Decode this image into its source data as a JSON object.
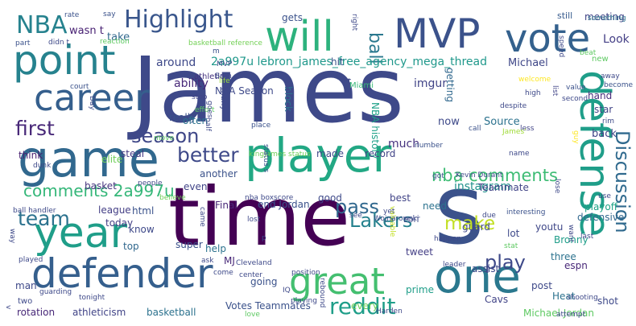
{
  "word_cloud": {
    "words": [
      {
        "text": "James",
        "color": "#3e4989"
      },
      {
        "text": "time",
        "color": "#440154"
      },
      {
        "text": "s",
        "color": "#3b528b"
      },
      {
        "text": "player",
        "color": "#22a884"
      },
      {
        "text": "defender",
        "color": "#355f8d"
      },
      {
        "text": "one",
        "color": "#2a788e"
      },
      {
        "text": "game",
        "color": "#31688e"
      },
      {
        "text": "point",
        "color": "#26828e"
      },
      {
        "text": "year",
        "color": "#1f9e89"
      },
      {
        "text": "career",
        "color": "#355f8d"
      },
      {
        "text": "vote",
        "color": "#34618d"
      },
      {
        "text": "MVP",
        "color": "#3b528b"
      },
      {
        "text": "will",
        "color": "#2db27d"
      },
      {
        "text": "defense",
        "color": "#1f9e89"
      },
      {
        "text": "great",
        "color": "#44bf70"
      },
      {
        "text": "Highlight",
        "color": "#39568c"
      },
      {
        "text": "NBA",
        "color": "#26828e"
      },
      {
        "text": "first",
        "color": "#482878"
      },
      {
        "text": "better",
        "color": "#3e4989"
      },
      {
        "text": "Discussion",
        "color": "#306a8e"
      },
      {
        "text": "reddit",
        "color": "#1f9e89"
      },
      {
        "text": "pass",
        "color": "#31688e"
      },
      {
        "text": "play",
        "color": "#3e4989"
      },
      {
        "text": "make",
        "color": "#c2df23"
      },
      {
        "text": "ball",
        "color": "#2a788e"
      },
      {
        "text": "team",
        "color": "#2c728e"
      },
      {
        "text": "Lakers",
        "color": "#26828e"
      },
      {
        "text": "season",
        "color": "#3f4788"
      },
      {
        "text": "nba comments",
        "color": "#3dbc74"
      },
      {
        "text": "comments 2a997u",
        "color": "#35b779"
      },
      {
        "text": "2a997u lebron_james_free_agency_mega_thread",
        "color": "#1f988b"
      },
      {
        "text": "ability",
        "color": "#482878"
      },
      {
        "text": "around",
        "color": "#3e4989"
      },
      {
        "text": "Michael",
        "color": "#3f4788"
      },
      {
        "text": "Look",
        "color": "#433e85"
      },
      {
        "text": "meeting",
        "color": "#414487"
      },
      {
        "text": "gets",
        "color": "#3b528b"
      },
      {
        "text": "take",
        "color": "#31688e"
      },
      {
        "text": "wasn t",
        "color": "#482173"
      },
      {
        "text": "hit",
        "color": "#3b528b"
      },
      {
        "text": "still",
        "color": "#375b8d"
      },
      {
        "text": "instagram",
        "color": "#21918c"
      },
      {
        "text": "imgur",
        "color": "#414487"
      },
      {
        "text": "block",
        "color": "#2c728e"
      },
      {
        "text": "much",
        "color": "#46337f"
      },
      {
        "text": "NBA Season",
        "color": "#3e4989"
      },
      {
        "text": "NBA history",
        "color": "#1fa188"
      },
      {
        "text": "hand",
        "color": "#472d7b"
      },
      {
        "text": "star",
        "color": "#414487"
      },
      {
        "text": "steal",
        "color": "#443983"
      },
      {
        "text": "really",
        "color": "#3b528b"
      },
      {
        "text": "often",
        "color": "#2c728e"
      },
      {
        "text": "think",
        "color": "#481f70"
      },
      {
        "text": "elite",
        "color": "#6ece58"
      },
      {
        "text": "back",
        "color": "#414487"
      },
      {
        "text": "now",
        "color": "#3e4989"
      },
      {
        "text": "Source",
        "color": "#2c728e"
      },
      {
        "text": "made",
        "color": "#3e4989"
      },
      {
        "text": "record",
        "color": "#414487"
      },
      {
        "text": "another",
        "color": "#3b528b"
      },
      {
        "text": "basket",
        "color": "#46337f"
      },
      {
        "text": "Final",
        "color": "#482878"
      },
      {
        "text": "end Jordan",
        "color": "#3b528b"
      },
      {
        "text": "good",
        "color": "#3e4989"
      },
      {
        "text": "best",
        "color": "#414487"
      },
      {
        "text": "Teammate",
        "color": "#414487"
      },
      {
        "text": "playoff",
        "color": "#20a386"
      },
      {
        "text": "league",
        "color": "#433e85"
      },
      {
        "text": "html",
        "color": "#3b528b"
      },
      {
        "text": "today",
        "color": "#433e85"
      },
      {
        "text": "know",
        "color": "#3e4989"
      },
      {
        "text": "top",
        "color": "#31688e"
      },
      {
        "text": "super",
        "color": "#3b528b"
      },
      {
        "text": "help",
        "color": "#2c728e"
      },
      {
        "text": "MJ",
        "color": "#482878"
      },
      {
        "text": "going",
        "color": "#3b528b"
      },
      {
        "text": "Votes Teammates",
        "color": "#3b528b"
      },
      {
        "text": "rotation",
        "color": "#482878"
      },
      {
        "text": "athleticism",
        "color": "#414487"
      },
      {
        "text": "basketball",
        "color": "#2c728e"
      },
      {
        "text": "Michael Jordan",
        "color": "#5ec962"
      },
      {
        "text": "Heat",
        "color": "#2c728e"
      },
      {
        "text": "shot",
        "color": "#3e4989"
      },
      {
        "text": "Cavs",
        "color": "#414487"
      },
      {
        "text": "post",
        "color": "#3e4989"
      },
      {
        "text": "every",
        "color": "#6ece58"
      },
      {
        "text": "prime",
        "color": "#1f9e89"
      },
      {
        "text": "tweet",
        "color": "#433e85"
      },
      {
        "text": "guard",
        "color": "#3e4989"
      },
      {
        "text": "assist",
        "color": "#3e4989"
      },
      {
        "text": "three",
        "color": "#2c728e"
      },
      {
        "text": "defensive",
        "color": "#31688e"
      },
      {
        "text": "youtu",
        "color": "#3f4788"
      },
      {
        "text": "Bronny",
        "color": "#1f9e89"
      },
      {
        "text": "espn",
        "color": "#482878"
      },
      {
        "text": "man",
        "color": "#3e4989"
      },
      {
        "text": "need",
        "color": "#2c728e"
      },
      {
        "text": "getting",
        "color": "#31688e"
      },
      {
        "text": "t",
        "color": "#3e4989"
      },
      {
        "text": "Miami",
        "color": "#38b977"
      },
      {
        "text": "many",
        "color": "#3e4989"
      },
      {
        "text": "even",
        "color": "#414487"
      },
      {
        "text": "lot",
        "color": "#3e4989"
      },
      {
        "text": "new",
        "color": "#5ec962"
      },
      {
        "text": "athletic",
        "color": "#46337f"
      },
      {
        "text": "rate",
        "color": "#3b528b"
      },
      {
        "text": "say",
        "color": "#3b528b"
      },
      {
        "text": "reaction",
        "color": "#5ec962"
      },
      {
        "text": "part",
        "color": "#3b528b"
      },
      {
        "text": "didn t",
        "color": "#3e4989"
      },
      {
        "text": "basketball reference",
        "color": "#73d056"
      },
      {
        "text": "court",
        "color": "#3b528b"
      },
      {
        "text": "stop",
        "color": "#414487"
      },
      {
        "text": "life",
        "color": "#95d840"
      },
      {
        "text": "right",
        "color": "#3e4989"
      },
      {
        "text": "something",
        "color": "#2c728e"
      },
      {
        "text": "speed",
        "color": "#3e4989"
      },
      {
        "text": "m",
        "color": "#3b528b"
      },
      {
        "text": "beat",
        "color": "#5ec962"
      },
      {
        "text": "value",
        "color": "#3b528b"
      },
      {
        "text": "away",
        "color": "#3e4989"
      },
      {
        "text": "become",
        "color": "#3b528b"
      },
      {
        "text": "list",
        "color": "#414487"
      },
      {
        "text": "high",
        "color": "#3e4989"
      },
      {
        "text": "second",
        "color": "#3e4989"
      },
      {
        "text": "despite",
        "color": "#3e4989"
      },
      {
        "text": "rim",
        "color": "#3e4989"
      },
      {
        "text": "less",
        "color": "#414487"
      },
      {
        "text": "call",
        "color": "#3b528b"
      },
      {
        "text": "guy",
        "color": "#fde725"
      },
      {
        "text": "James'",
        "color": "#a0da39"
      },
      {
        "text": "number",
        "color": "#3b528b"
      },
      {
        "text": "name",
        "color": "#3e4989"
      },
      {
        "text": "got",
        "color": "#3b528b"
      },
      {
        "text": "Kevin Durant",
        "color": "#3e4989"
      },
      {
        "text": "read",
        "color": "#3e4989"
      },
      {
        "text": "place",
        "color": "#3b528b"
      },
      {
        "text": "kingjames status",
        "color": "#6ece58"
      },
      {
        "text": "status s",
        "color": "#3b528b"
      },
      {
        "text": "ball handler",
        "color": "#3e4989"
      },
      {
        "text": "believe",
        "color": "#6ece58"
      },
      {
        "text": "people",
        "color": "#3e4989"
      },
      {
        "text": "nba boxscore",
        "color": "#3e4989"
      },
      {
        "text": "valuable",
        "color": "#c2df23"
      },
      {
        "text": "came",
        "color": "#3e4989"
      },
      {
        "text": "Wojnarowski",
        "color": "#3e4989"
      },
      {
        "text": "EDIT",
        "color": "#3e4989"
      },
      {
        "text": "see",
        "color": "#3e4989"
      },
      {
        "text": "yet",
        "color": "#3e4989"
      },
      {
        "text": "due",
        "color": "#3e4989"
      },
      {
        "text": "interesting",
        "color": "#3b528b"
      },
      {
        "text": "want",
        "color": "#3e4989"
      },
      {
        "text": "use",
        "color": "#3e4989"
      },
      {
        "text": "lose",
        "color": "#3e4989"
      },
      {
        "text": "way",
        "color": "#3e4989"
      },
      {
        "text": "lost",
        "color": "#3e4989"
      },
      {
        "text": "p",
        "color": "#3e4989"
      },
      {
        "text": "ask",
        "color": "#3e4989"
      },
      {
        "text": "come",
        "color": "#3e4989"
      },
      {
        "text": "Cleveland",
        "color": "#3e4989"
      },
      {
        "text": "center",
        "color": "#3e4989"
      },
      {
        "text": "position",
        "color": "#3e4989"
      },
      {
        "text": "rebound",
        "color": "#3e4989"
      },
      {
        "text": "happen",
        "color": "#3e4989"
      },
      {
        "text": "leader",
        "color": "#3e4989"
      },
      {
        "text": "stat",
        "color": "#5ec962"
      },
      {
        "text": "last",
        "color": "#3e4989"
      },
      {
        "text": "shooting",
        "color": "#3e4989"
      },
      {
        "text": "attempt",
        "color": "#3e4989"
      },
      {
        "text": "guarding",
        "color": "#3e4989"
      },
      {
        "text": "tonight",
        "color": "#3e4989"
      },
      {
        "text": "IQ",
        "color": "#3e4989"
      },
      {
        "text": "playing",
        "color": "#3e4989"
      },
      {
        "text": "Harden",
        "color": "#3e4989"
      },
      {
        "text": "love",
        "color": "#5ec962"
      },
      {
        "text": "half",
        "color": "#3e4989"
      },
      {
        "text": "effort",
        "color": "#5ec962"
      },
      {
        "text": "goes",
        "color": "#3e4989"
      },
      {
        "text": "move",
        "color": "#5ec962"
      },
      {
        "text": "Day",
        "color": "#3e4989"
      },
      {
        "text": "played",
        "color": "#3e4989"
      },
      {
        "text": "dunk",
        "color": "#3e4989"
      },
      {
        "text": "v",
        "color": "#3e4989"
      },
      {
        "text": "two",
        "color": "#3e4989"
      },
      {
        "text": "MVP",
        "color": "#3e4989"
      },
      {
        "text": "Bron",
        "color": "#3e4989"
      },
      {
        "text": "welcome",
        "color": "#fde725"
      }
    ]
  }
}
